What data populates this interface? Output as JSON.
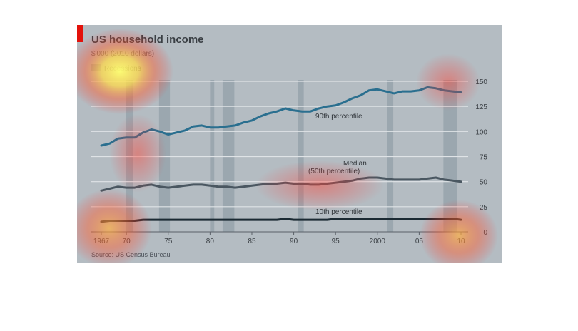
{
  "chart_data": {
    "type": "line",
    "title": "US household income",
    "subtitle": "$'000 (2010 dollars)",
    "legend": [
      "Recessions"
    ],
    "source": "Source: US Census Bureau",
    "ylim": [
      0,
      150
    ],
    "y_ticks": [
      "150",
      "125",
      "100",
      "75",
      "50",
      "25",
      "0"
    ],
    "x_range": [
      1967,
      2010
    ],
    "x_ticks": [
      {
        "year": 1967,
        "label": "1967"
      },
      {
        "year": 1970,
        "label": "70"
      },
      {
        "year": 1975,
        "label": "75"
      },
      {
        "year": 1980,
        "label": "80"
      },
      {
        "year": 1985,
        "label": "85"
      },
      {
        "year": 1990,
        "label": "90"
      },
      {
        "year": 1995,
        "label": "95"
      },
      {
        "year": 2000,
        "label": "2000"
      },
      {
        "year": 2005,
        "label": "05"
      },
      {
        "year": 2010,
        "label": "10"
      }
    ],
    "recessions": [
      [
        1969.9,
        1970.8
      ],
      [
        1973.9,
        1975.2
      ],
      [
        1980.0,
        1980.5
      ],
      [
        1981.5,
        1982.9
      ],
      [
        1990.5,
        1991.2
      ],
      [
        2001.2,
        2001.9
      ],
      [
        2007.9,
        2009.5
      ]
    ],
    "annotations": {
      "p90": "90th percentile",
      "median_1": "Median",
      "median_2": "(50th percentile)",
      "p10": "10th percentile"
    },
    "x": [
      1967,
      1968,
      1969,
      1970,
      1971,
      1972,
      1973,
      1974,
      1975,
      1976,
      1977,
      1978,
      1979,
      1980,
      1981,
      1982,
      1983,
      1984,
      1985,
      1986,
      1987,
      1988,
      1989,
      1990,
      1991,
      1992,
      1993,
      1994,
      1995,
      1996,
      1997,
      1998,
      1999,
      2000,
      2001,
      2002,
      2003,
      2004,
      2005,
      2006,
      2007,
      2008,
      2009,
      2010
    ],
    "series": [
      {
        "key": "p90",
        "color": "#2a6f8f",
        "values": [
          86,
          88,
          93,
          94,
          94,
          99,
          102,
          100,
          97,
          99,
          101,
          105,
          106,
          104,
          104,
          105,
          106,
          109,
          111,
          115,
          118,
          120,
          123,
          121,
          120,
          120,
          123,
          125,
          126,
          129,
          133,
          136,
          141,
          142,
          140,
          138,
          140,
          140,
          141,
          144,
          143,
          141,
          140,
          139
        ]
      },
      {
        "key": "median",
        "color": "#4a5761",
        "values": [
          41,
          43,
          45,
          44,
          44,
          46,
          47,
          45,
          44,
          45,
          46,
          47,
          47,
          46,
          45,
          45,
          44,
          45,
          46,
          47,
          48,
          48,
          49,
          48,
          48,
          47,
          47,
          48,
          49,
          50,
          51,
          53,
          54,
          54,
          53,
          52,
          52,
          52,
          52,
          53,
          54,
          52,
          51,
          50
        ]
      },
      {
        "key": "p10",
        "color": "#1b2a33",
        "values": [
          10,
          11,
          11,
          11,
          11,
          12,
          12,
          12,
          12,
          12,
          12,
          12,
          12,
          12,
          12,
          12,
          12,
          12,
          12,
          12,
          12,
          12,
          13,
          12,
          12,
          12,
          12,
          12,
          13,
          13,
          13,
          13,
          13,
          13,
          13,
          13,
          13,
          13,
          13,
          13,
          13,
          13,
          13,
          12
        ]
      }
    ]
  }
}
